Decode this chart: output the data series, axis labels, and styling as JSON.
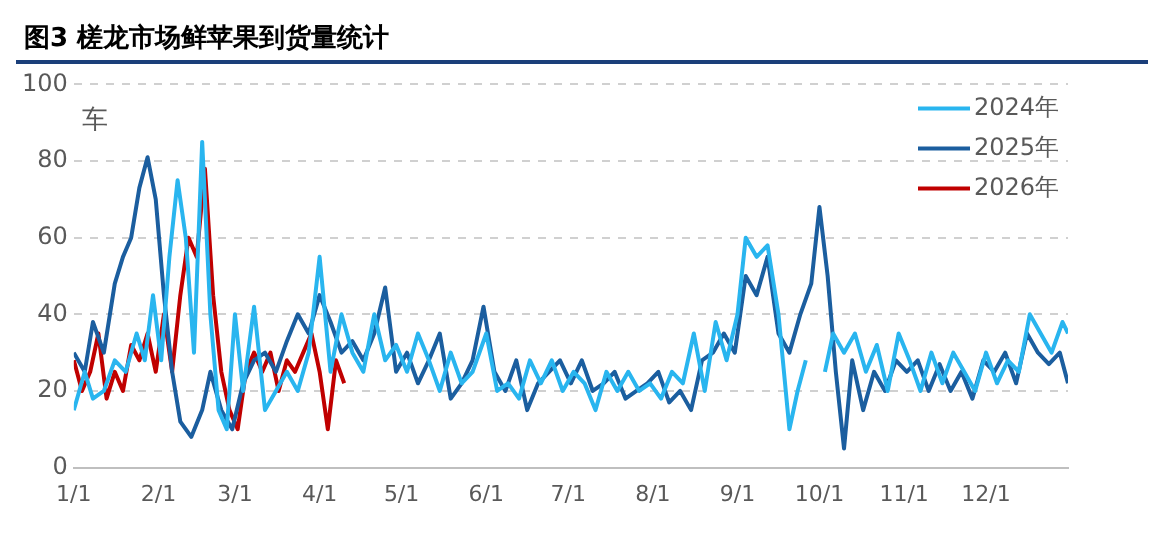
{
  "chart_data": {
    "type": "line",
    "title": "图3 槎龙市场鲜苹果到货量统计",
    "ylabel": "车",
    "xlim": [
      "--01-01",
      "--12-31"
    ],
    "xticks": [
      {
        "value": "--01-01",
        "label": "1/1"
      },
      {
        "value": "--02-01",
        "label": "2/1"
      },
      {
        "value": "--03-01",
        "label": "3/1"
      },
      {
        "value": "--04-01",
        "label": "4/1"
      },
      {
        "value": "--05-01",
        "label": "5/1"
      },
      {
        "value": "--06-01",
        "label": "6/1"
      },
      {
        "value": "--07-01",
        "label": "7/1"
      },
      {
        "value": "--08-01",
        "label": "8/1"
      },
      {
        "value": "--09-01",
        "label": "9/1"
      },
      {
        "value": "--10-01",
        "label": "10/1"
      },
      {
        "value": "--11-01",
        "label": "11/1"
      },
      {
        "value": "--12-01",
        "label": "12/1"
      }
    ],
    "ylim": [
      0,
      100
    ],
    "yticks": [
      0,
      20,
      40,
      60,
      80,
      100
    ],
    "grid": "y",
    "legend": "top right",
    "marker": "none",
    "line_style": "solid",
    "series": [
      {
        "name": "2024年",
        "color": "#29b5ef",
        "x": [
          "--01-01",
          "--01-05",
          "--01-08",
          "--01-12",
          "--01-16",
          "--01-20",
          "--01-24",
          "--01-27",
          "--01-30",
          "--02-02",
          "--02-05",
          "--02-08",
          "--02-11",
          "--02-14",
          "--02-17",
          "--02-20",
          "--02-23",
          "--02-26",
          "--03-01",
          "--03-04",
          "--03-08",
          "--03-12",
          "--03-16",
          "--03-20",
          "--03-24",
          "--03-28",
          "--04-01",
          "--04-05",
          "--04-09",
          "--04-13",
          "--04-17",
          "--04-21",
          "--04-25",
          "--04-29",
          "--05-03",
          "--05-07",
          "--05-11",
          "--05-15",
          "--05-19",
          "--05-23",
          "--05-27",
          "--06-01",
          "--06-05",
          "--06-09",
          "--06-13",
          "--06-17",
          "--06-21",
          "--06-25",
          "--06-29",
          "--07-03",
          "--07-07",
          "--07-11",
          "--07-15",
          "--07-19",
          "--07-23",
          "--07-27",
          "--07-31",
          "--08-04",
          "--08-08",
          "--08-12",
          "--08-16",
          "--08-20",
          "--08-24",
          "--08-28",
          "--09-01",
          "--09-04",
          "--09-08",
          "--09-12",
          "--09-16",
          "--09-20",
          "--09-23",
          "--09-26",
          "--09-28",
          "--10-03",
          "--10-06",
          "--10-10",
          "--10-14",
          "--10-18",
          "--10-22",
          "--10-26",
          "--10-30",
          "--11-03",
          "--11-07",
          "--11-11",
          "--11-15",
          "--11-19",
          "--11-23",
          "--11-27",
          "--12-01",
          "--12-05",
          "--12-09",
          "--12-13",
          "--12-17",
          "--12-21",
          "--12-25",
          "--12-29",
          "--12-31"
        ],
        "values": [
          15,
          25,
          18,
          20,
          28,
          25,
          35,
          28,
          45,
          28,
          55,
          75,
          60,
          30,
          85,
          40,
          15,
          10,
          40,
          20,
          42,
          15,
          20,
          25,
          20,
          30,
          55,
          25,
          40,
          30,
          25,
          40,
          28,
          32,
          25,
          35,
          28,
          20,
          30,
          22,
          25,
          35,
          20,
          22,
          18,
          28,
          22,
          28,
          20,
          25,
          22,
          15,
          25,
          20,
          25,
          20,
          22,
          18,
          25,
          22,
          35,
          20,
          38,
          28,
          40,
          60,
          55,
          58,
          40,
          10,
          20,
          28,
          null,
          25,
          35,
          30,
          35,
          25,
          32,
          20,
          35,
          28,
          20,
          30,
          22,
          30,
          25,
          20,
          30,
          22,
          28,
          25,
          40,
          35,
          30,
          38,
          35
        ]
      },
      {
        "name": "2025年",
        "color": "#1b5e9f",
        "x": [
          "--01-01",
          "--01-05",
          "--01-08",
          "--01-12",
          "--01-16",
          "--01-19",
          "--01-22",
          "--01-25",
          "--01-28",
          "--01-31",
          "--02-03",
          "--02-06",
          "--02-09",
          "--02-13",
          "--02-17",
          "--02-20",
          "--02-24",
          "--02-28",
          "--03-04",
          "--03-08",
          "--03-12",
          "--03-16",
          "--03-20",
          "--03-24",
          "--03-28",
          "--04-01",
          "--04-05",
          "--04-09",
          "--04-13",
          "--04-17",
          "--04-21",
          "--04-25",
          "--04-29",
          "--05-03",
          "--05-07",
          "--05-11",
          "--05-15",
          "--05-19",
          "--05-23",
          "--05-27",
          "--05-31",
          "--06-04",
          "--06-08",
          "--06-12",
          "--06-16",
          "--06-20",
          "--06-24",
          "--06-28",
          "--07-02",
          "--07-06",
          "--07-10",
          "--07-14",
          "--07-18",
          "--07-22",
          "--07-26",
          "--07-30",
          "--08-03",
          "--08-07",
          "--08-11",
          "--08-15",
          "--08-19",
          "--08-23",
          "--08-27",
          "--08-31",
          "--09-04",
          "--09-08",
          "--09-12",
          "--09-16",
          "--09-20",
          "--09-24",
          "--09-28",
          "--10-01",
          "--10-04",
          "--10-07",
          "--10-10",
          "--10-13",
          "--10-17",
          "--10-21",
          "--10-25",
          "--10-29",
          "--11-02",
          "--11-06",
          "--11-10",
          "--11-14",
          "--11-18",
          "--11-22",
          "--11-26",
          "--11-30",
          "--12-04",
          "--12-08",
          "--12-12",
          "--12-16",
          "--12-20",
          "--12-24",
          "--12-28",
          "--12-31"
        ],
        "values": [
          30,
          25,
          38,
          30,
          48,
          55,
          60,
          73,
          81,
          70,
          45,
          25,
          12,
          8,
          15,
          25,
          15,
          10,
          22,
          28,
          30,
          25,
          33,
          40,
          35,
          45,
          38,
          30,
          33,
          28,
          35,
          47,
          25,
          30,
          22,
          28,
          35,
          18,
          22,
          28,
          42,
          25,
          20,
          28,
          15,
          22,
          25,
          28,
          22,
          28,
          20,
          22,
          25,
          18,
          20,
          22,
          25,
          17,
          20,
          15,
          28,
          30,
          35,
          30,
          50,
          45,
          55,
          35,
          30,
          40,
          48,
          68,
          50,
          25,
          5,
          28,
          15,
          25,
          20,
          28,
          25,
          28,
          20,
          27,
          20,
          25,
          18,
          28,
          25,
          30,
          22,
          35,
          30,
          27,
          30,
          22
        ]
      },
      {
        "name": "2026年",
        "color": "#c00000",
        "x": [
          "--01-01",
          "--01-04",
          "--01-07",
          "--01-10",
          "--01-13",
          "--01-16",
          "--01-19",
          "--01-22",
          "--01-25",
          "--01-28",
          "--01-31",
          "--02-03",
          "--02-06",
          "--02-09",
          "--02-12",
          "--02-15",
          "--02-18",
          "--02-21",
          "--02-24",
          "--02-27",
          "--03-02",
          "--03-05",
          "--03-08",
          "--03-11",
          "--03-14",
          "--03-17",
          "--03-20",
          "--03-23",
          "--03-26",
          "--03-29",
          "--04-01",
          "--04-04",
          "--04-07",
          "--04-10"
        ],
        "values": [
          28,
          20,
          25,
          35,
          18,
          25,
          20,
          32,
          28,
          35,
          25,
          40,
          25,
          45,
          60,
          55,
          78,
          45,
          25,
          15,
          10,
          25,
          30,
          25,
          30,
          20,
          28,
          25,
          30,
          35,
          25,
          10,
          28,
          22
        ]
      }
    ]
  }
}
